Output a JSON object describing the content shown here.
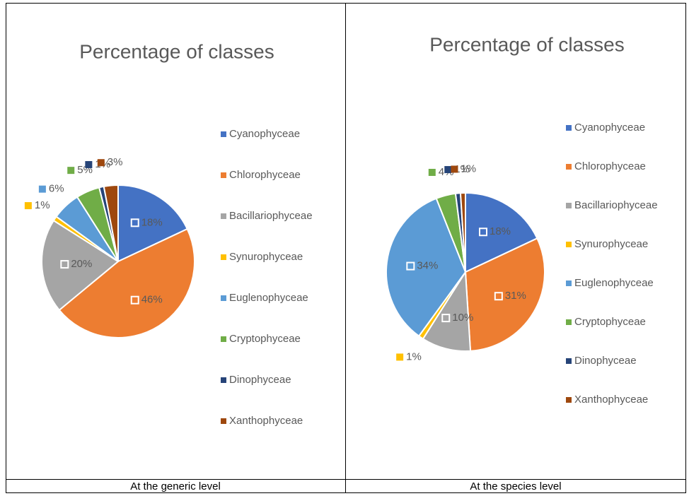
{
  "chart_data": [
    {
      "type": "pie",
      "title": "Percentage of classes",
      "caption": "At the generic level",
      "categories": [
        "Cyanophyceae",
        "Chlorophyceae",
        "Bacillariophyceae",
        "Synurophyceae",
        "Euglenophyceae",
        "Cryptophyceae",
        "Dinophyceae",
        "Xanthophyceae"
      ],
      "values": [
        18,
        46,
        20,
        1,
        6,
        5,
        1,
        3
      ],
      "value_labels": [
        "18%",
        "46%",
        "20%",
        "1%",
        "6%",
        "5%",
        "1%",
        "3%"
      ],
      "colors": [
        "#4472c4",
        "#ed7d31",
        "#a5a5a5",
        "#ffc000",
        "#5b9bd5",
        "#70ad47",
        "#264478",
        "#9e480e"
      ],
      "legend": "right"
    },
    {
      "type": "pie",
      "title": "Percentage of classes",
      "caption": "At the species level",
      "categories": [
        "Cyanophyceae",
        "Chlorophyceae",
        "Bacillariophyceae",
        "Synurophyceae",
        "Euglenophyceae",
        "Cryptophyceae",
        "Dinophyceae",
        "Xanthophyceae"
      ],
      "values": [
        18,
        31,
        10,
        1,
        34,
        4,
        1,
        1
      ],
      "value_labels": [
        "18%",
        "31%",
        "10%",
        "1%",
        "34%",
        "4%",
        "1%",
        "1%"
      ],
      "colors": [
        "#4472c4",
        "#ed7d31",
        "#a5a5a5",
        "#ffc000",
        "#5b9bd5",
        "#70ad47",
        "#264478",
        "#9e480e"
      ],
      "legend": "right"
    }
  ]
}
